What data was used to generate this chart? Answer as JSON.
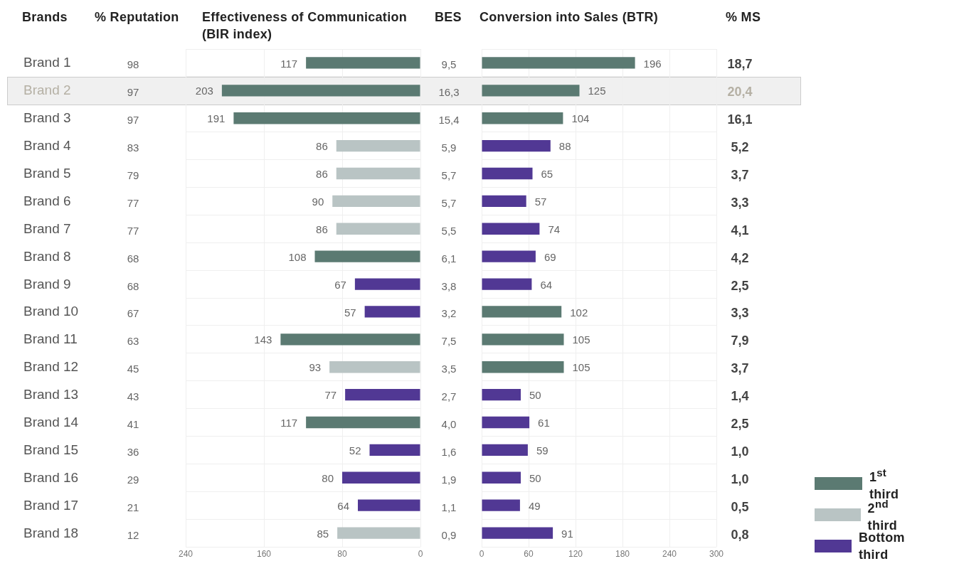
{
  "chart_data": [
    {
      "type": "other",
      "title": "Brands",
      "data_labels": true,
      "categories": [
        "Brand 1",
        "Brand 2",
        "Brand 3",
        "Brand 4",
        "Brand 5",
        "Brand 6",
        "Brand 7",
        "Brand 8",
        "Brand 9",
        "Brand 10",
        "Brand 11",
        "Brand 12",
        "Brand 13",
        "Brand 14",
        "Brand 15",
        "Brand 16",
        "Brand 17",
        "Brand 18"
      ],
      "series": [
        {
          "name": "% Reputation",
          "values": [
            98,
            97,
            97,
            83,
            79,
            77,
            77,
            68,
            68,
            67,
            63,
            45,
            43,
            41,
            36,
            29,
            21,
            12
          ]
        },
        {
          "name": "BES",
          "values": [
            9.5,
            16.3,
            15.4,
            5.9,
            5.7,
            5.7,
            5.5,
            6.1,
            3.8,
            3.2,
            7.5,
            3.5,
            2.7,
            4.0,
            1.6,
            1.9,
            1.1,
            0.9
          ],
          "value_labels": [
            "9,5",
            "16,3",
            "15,4",
            "5,9",
            "5,7",
            "5,7",
            "5,5",
            "6,1",
            "3,8",
            "3,2",
            "7,5",
            "3,5",
            "2,7",
            "4,0",
            "1,6",
            "1,9",
            "1,1",
            "0,9"
          ]
        },
        {
          "name": "% MS",
          "values": [
            18.7,
            20.4,
            16.1,
            5.2,
            3.7,
            3.3,
            4.1,
            4.2,
            2.5,
            3.3,
            7.9,
            3.7,
            1.4,
            2.5,
            1.0,
            1.0,
            0.5,
            0.8
          ],
          "value_labels": [
            "18,7",
            "20,4",
            "16,1",
            "5,2",
            "3,7",
            "3,3",
            "4,1",
            "4,2",
            "2,5",
            "3,3",
            "7,9",
            "3,7",
            "1,4",
            "2,5",
            "1,0",
            "1,0",
            "0,5",
            "0,8"
          ]
        }
      ]
    },
    {
      "type": "bar",
      "title": "Effectiveness of Communication (BIR index)",
      "orientation": "horizontal",
      "stacked": true,
      "categories": [
        null,
        null,
        null,
        null,
        null,
        null,
        null,
        null,
        null,
        null,
        null,
        null,
        null,
        null,
        null,
        null,
        null,
        null
      ],
      "series": [
        {
          "color": "#5b7a72",
          "values": [
            117,
            203,
            191,
            null,
            null,
            null,
            null,
            108,
            null,
            null,
            143,
            null,
            null,
            117,
            null,
            null,
            null,
            null
          ]
        },
        {
          "color": "#b9c4c4",
          "values": [
            null,
            null,
            null,
            86,
            86,
            90,
            86,
            null,
            null,
            null,
            null,
            93,
            null,
            null,
            null,
            null,
            null,
            85
          ]
        },
        {
          "color": "#513894",
          "values": [
            null,
            null,
            null,
            null,
            null,
            null,
            null,
            null,
            67,
            57,
            null,
            null,
            77,
            null,
            52,
            80,
            64,
            null
          ]
        }
      ],
      "xlim": [
        240,
        0
      ],
      "xticks": [
        240,
        160,
        80,
        0
      ],
      "grid": true,
      "data_labels": true,
      "legend": false
    },
    {
      "type": "bar",
      "title": "Conversion into Sales (BTR)",
      "orientation": "horizontal",
      "stacked": true,
      "categories": [
        null,
        null,
        null,
        null,
        null,
        null,
        null,
        null,
        null,
        null,
        null,
        null,
        null,
        null,
        null,
        null,
        null,
        null
      ],
      "series": [
        {
          "name": "1$^{st}$ third",
          "color": "#5b7a72",
          "values": [
            196,
            125,
            104,
            null,
            null,
            null,
            null,
            null,
            null,
            102,
            105,
            105,
            null,
            null,
            null,
            null,
            null,
            null
          ]
        },
        {
          "name": "2$^{nd}$ third",
          "color": "#b9c4c4",
          "values": [
            null,
            null,
            null,
            null,
            null,
            null,
            null,
            null,
            null,
            null,
            null,
            null,
            null,
            null,
            null,
            null,
            null,
            null
          ]
        },
        {
          "name": "Bottom third",
          "color": "#513894",
          "values": [
            null,
            null,
            null,
            88,
            65,
            57,
            74,
            69,
            64,
            null,
            null,
            null,
            50,
            61,
            59,
            50,
            49,
            91
          ]
        }
      ],
      "xlim": [
        0,
        300
      ],
      "xticks": [
        0,
        60,
        120,
        180,
        240,
        300
      ],
      "grid": true,
      "data_labels": true,
      "legend": "bottom right"
    }
  ]
}
